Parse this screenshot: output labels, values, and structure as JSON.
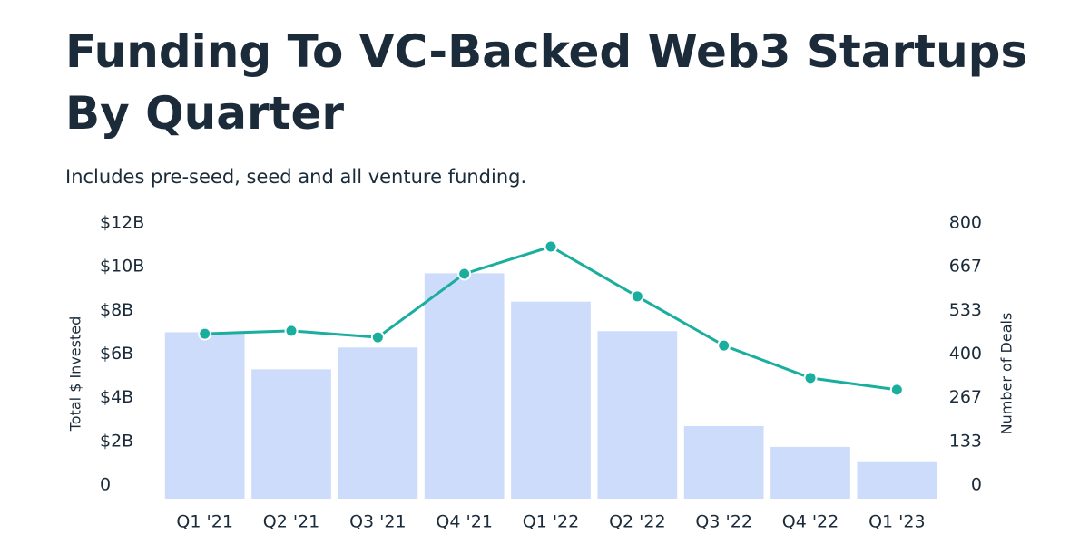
{
  "chart_data": {
    "type": "bar-line",
    "title": "Funding To VC-Backed Web3 Startups By Quarter",
    "subtitle": "Includes pre-seed, seed and all venture funding.",
    "y_label": "Total $ Invested",
    "y2_label": "Number of Deals",
    "categories": [
      "Q1 '21",
      "Q2 '21",
      "Q3 '21",
      "Q4 '21",
      "Q1 '22",
      "Q2 '22",
      "Q3 '22",
      "Q4 '22",
      "Q1 '23"
    ],
    "series": [
      {
        "name": "Total $ Invested",
        "type": "bar",
        "color": "#cddcfa",
        "values": [
          7.0,
          5.3,
          6.3,
          9.7,
          8.4,
          7.05,
          2.7,
          1.75,
          1.05
        ]
      },
      {
        "name": "Number of Deals",
        "type": "line",
        "axis": "y2",
        "color": "#1aae9f",
        "values": [
          462,
          471,
          451,
          645,
          728,
          576,
          426,
          327,
          291
        ]
      }
    ],
    "ylim": [
      0,
      12
    ],
    "yticks": [
      {
        "value": 0,
        "label": "0"
      },
      {
        "value": 2,
        "label": "$2B"
      },
      {
        "value": 4,
        "label": "$4B"
      },
      {
        "value": 6,
        "label": "$6B"
      },
      {
        "value": 8,
        "label": "$8B"
      },
      {
        "value": 10,
        "label": "$10B"
      },
      {
        "value": 12,
        "label": "$12B"
      }
    ],
    "y2lim": [
      0,
      800
    ],
    "y2ticks": [
      0,
      133,
      267,
      400,
      533,
      667,
      800
    ]
  }
}
